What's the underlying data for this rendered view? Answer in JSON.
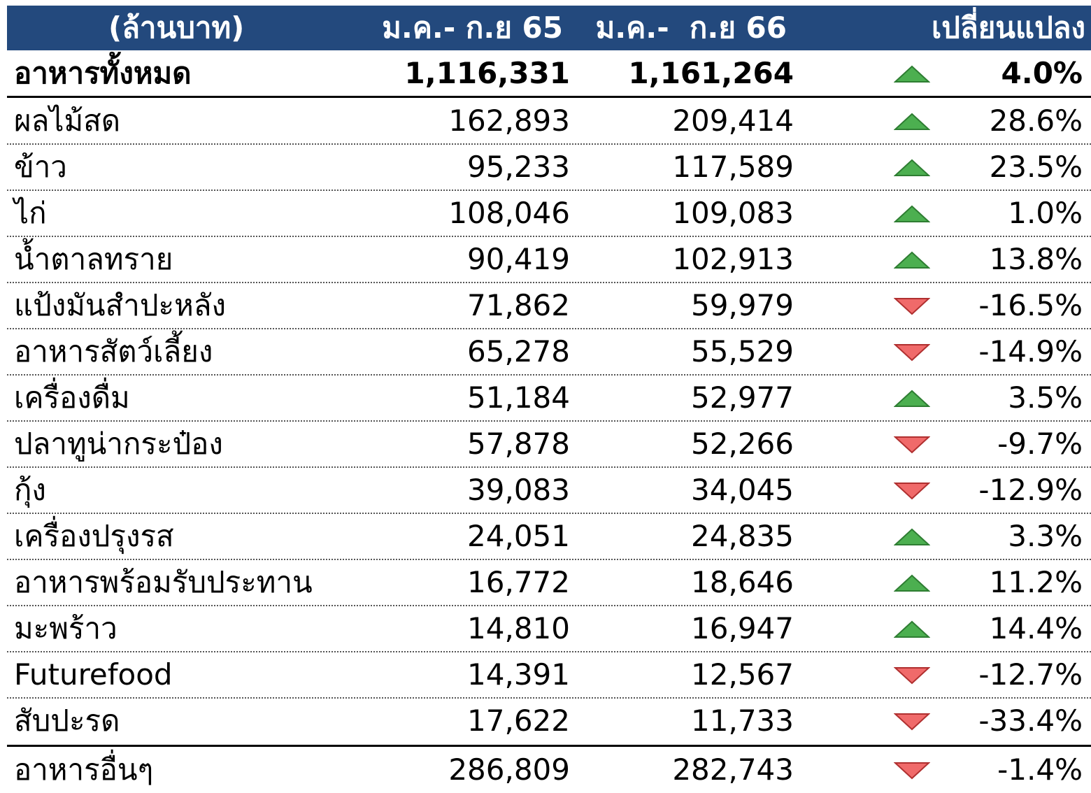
{
  "table": {
    "header": [
      "(ล้านบาท)",
      "ม.ค.- ก.ย 65",
      "ม.ค.-  ก.ย 66",
      "เปลี่ยนแปลง"
    ],
    "total": [
      "อาหารทั้งหมด",
      "1,116,331",
      "1,161,264",
      "4.0%"
    ],
    "rows": [
      [
        "ผลไม้สด",
        "162,893",
        "209,414",
        "28.6%"
      ],
      [
        "ข้าว",
        "95,233",
        "117,589",
        "23.5%"
      ],
      [
        "ไก่",
        "108,046",
        "109,083",
        "1.0%"
      ],
      [
        "น้ำตาลทราย",
        "90,419",
        "102,913",
        "13.8%"
      ],
      [
        "แป้งมันสำปะหลัง",
        "71,862",
        "59,979",
        "-16.5%"
      ],
      [
        "อาหารสัตว์เลี้ยง",
        "65,278",
        "55,529",
        "-14.9%"
      ],
      [
        "เครื่องดื่ม",
        "51,184",
        "52,977",
        "3.5%"
      ],
      [
        "ปลาทูน่ากระป๋อง",
        "57,878",
        "52,266",
        "-9.7%"
      ],
      [
        "กุ้ง",
        "39,083",
        "34,045",
        "-12.9%"
      ],
      [
        "เครื่องปรุงรส",
        "24,051",
        "24,835",
        "3.3%"
      ],
      [
        "อาหารพร้อมรับประทาน",
        "16,772",
        "18,646",
        "11.2%"
      ],
      [
        "มะพร้าว",
        "14,810",
        "16,947",
        "14.4%"
      ],
      [
        "Futurefood",
        "14,391",
        "12,567",
        "-12.7%"
      ],
      [
        "สับปะรด",
        "17,622",
        "11,733",
        "-33.4%"
      ]
    ],
    "footer": [
      "อาหารอื่นๆ",
      "286,809",
      "282,743",
      "-1.4%"
    ]
  }
}
